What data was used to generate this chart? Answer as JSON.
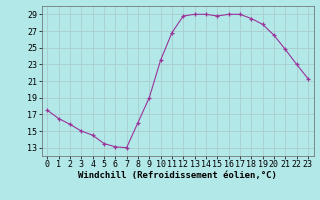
{
  "x": [
    0,
    1,
    2,
    3,
    4,
    5,
    6,
    7,
    8,
    9,
    10,
    11,
    12,
    13,
    14,
    15,
    16,
    17,
    18,
    19,
    20,
    21,
    22,
    23
  ],
  "y": [
    17.5,
    16.5,
    15.8,
    15.0,
    14.5,
    13.5,
    13.1,
    13.0,
    16.0,
    19.0,
    23.5,
    26.8,
    28.8,
    29.0,
    29.0,
    28.8,
    29.0,
    29.0,
    28.5,
    27.8,
    26.5,
    24.8,
    23.0,
    21.3
  ],
  "xlabel": "Windchill (Refroidissement éolien,°C)",
  "xlim": [
    -0.5,
    23.5
  ],
  "ylim": [
    12,
    30
  ],
  "yticks": [
    13,
    15,
    17,
    19,
    21,
    23,
    25,
    27,
    29
  ],
  "xticks": [
    0,
    1,
    2,
    3,
    4,
    5,
    6,
    7,
    8,
    9,
    10,
    11,
    12,
    13,
    14,
    15,
    16,
    17,
    18,
    19,
    20,
    21,
    22,
    23
  ],
  "line_color": "#993399",
  "marker": "+",
  "bg_color": "#b3e8e8",
  "grid_color": "#aacccc",
  "label_fontsize": 6.5,
  "tick_fontsize": 6.0
}
